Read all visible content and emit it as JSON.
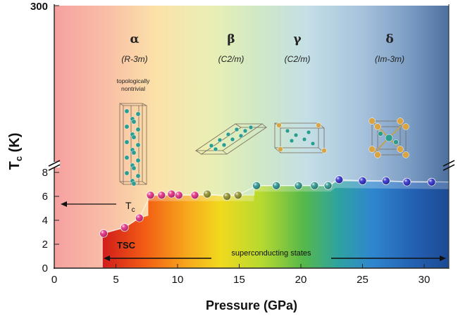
{
  "chart_data": {
    "type": "scatter",
    "xlabel": "Pressure (GPa)",
    "ylabel_main": "T",
    "ylabel_sub": "c",
    "ylabel_unit": " (K)",
    "xlim": [
      0,
      32
    ],
    "ylim_lower": [
      0,
      9
    ],
    "y_break_top_label": "300",
    "x_ticks": [
      "0",
      "5",
      "10",
      "15",
      "20",
      "25",
      "30"
    ],
    "y_ticks": [
      "0",
      "2",
      "4",
      "6",
      "8"
    ],
    "phases": [
      {
        "symbol": "α",
        "space_group": "(R-3m)",
        "range": [
          0,
          9.5
        ],
        "note": [
          "topologically",
          "nontrivial"
        ]
      },
      {
        "symbol": "β",
        "space_group": "(C2/m)",
        "range": [
          9.5,
          16.5
        ]
      },
      {
        "symbol": "γ",
        "space_group": "(C2/m)",
        "range": [
          16.5,
          22.5
        ]
      },
      {
        "symbol": "δ",
        "space_group": "(Im-3m)",
        "range": [
          22.5,
          32
        ]
      }
    ],
    "series": [
      {
        "color": "#e0227a",
        "x": [
          4.0,
          5.7,
          6.9,
          7.8,
          8.7,
          9.5,
          10.1,
          11.4
        ],
        "y": [
          2.9,
          3.4,
          4.2,
          6.1,
          6.1,
          6.2,
          6.1,
          6.1
        ]
      },
      {
        "color": "#8a8a1a",
        "x": [
          12.4,
          14.0,
          14.9
        ],
        "y": [
          6.2,
          6.0,
          6.1
        ]
      },
      {
        "color": "#1f8f86",
        "x": [
          16.4,
          18.0,
          19.8,
          21.1,
          22.2
        ],
        "y": [
          6.9,
          6.9,
          6.9,
          6.9,
          6.9
        ]
      },
      {
        "color": "#2424c8",
        "x": [
          23.1,
          25.0,
          26.9,
          28.6,
          30.6
        ],
        "y": [
          7.4,
          7.3,
          7.3,
          7.2,
          7.2
        ]
      }
    ],
    "annotations": {
      "tc_label": "T",
      "tc_sub": "c",
      "tsc_label": "TSC",
      "sc_states_label": "superconducting  states"
    }
  }
}
